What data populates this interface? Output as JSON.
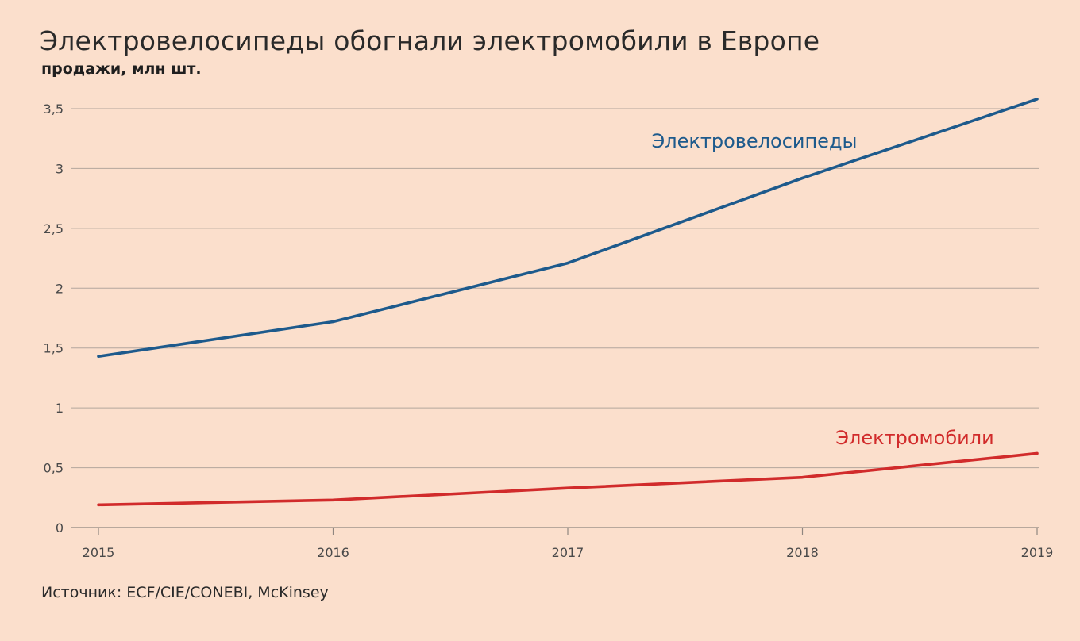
{
  "chart_data": {
    "type": "line",
    "title": "Электровелосипеды обогнали электромобили в Европе",
    "subtitle": "продажи, млн шт.",
    "source": "Источник: ECF/CIE/CONEBI, McKinsey",
    "x": [
      "2015",
      "2016",
      "2017",
      "2018",
      "2019"
    ],
    "ylim": [
      0,
      3.5
    ],
    "yticks": [
      0,
      0.5,
      1,
      1.5,
      2,
      2.5,
      3,
      3.5
    ],
    "ytick_labels": [
      "0",
      "0,5",
      "1",
      "1,5",
      "2",
      "2,5",
      "3",
      "3,5"
    ],
    "grid": true,
    "series": [
      {
        "name": "Электровелосипеды",
        "values": [
          1.43,
          1.72,
          2.21,
          2.92,
          3.58
        ],
        "color": "#1d5a8c"
      },
      {
        "name": "Электромобили",
        "values": [
          0.19,
          0.23,
          0.33,
          0.42,
          0.62
        ],
        "color": "#d12b2b"
      }
    ]
  }
}
